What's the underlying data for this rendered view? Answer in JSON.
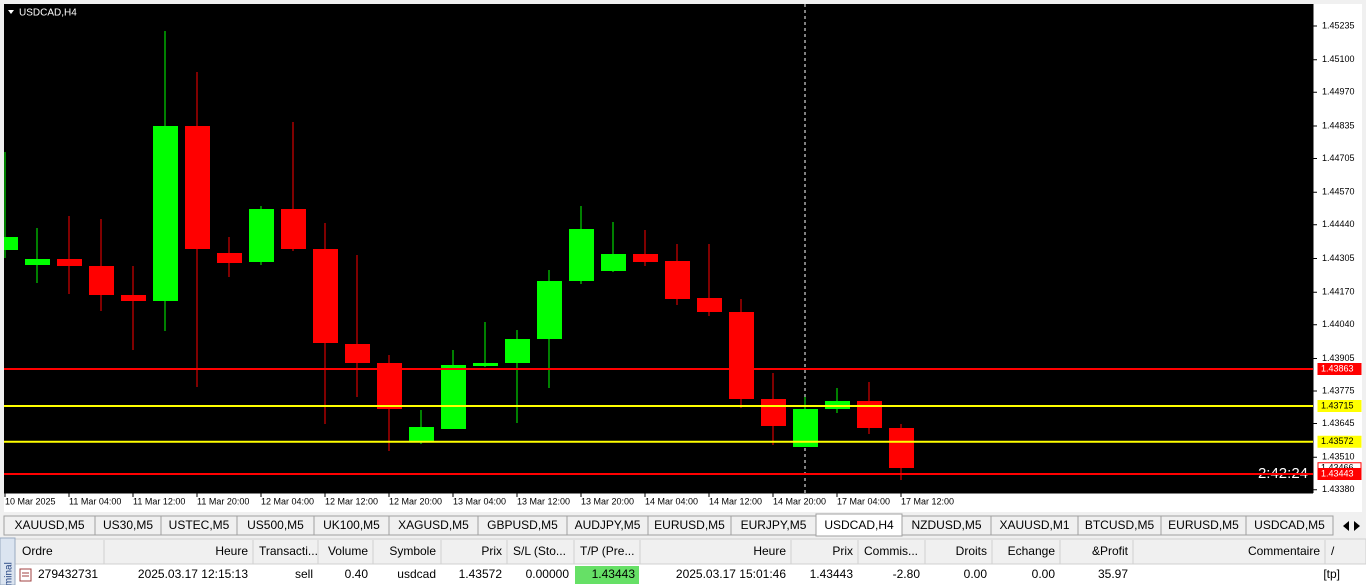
{
  "window": {
    "title": "USDCAD,H4"
  },
  "chart_data": {
    "type": "candlestick",
    "categories": [
      "10 Mar 2025",
      null,
      "11 Mar 04:00",
      null,
      "11 Mar 12:00",
      null,
      "11 Mar 20:00",
      null,
      "12 Mar 04:00",
      null,
      "12 Mar 12:00",
      null,
      "12 Mar 20:00",
      null,
      "13 Mar 04:00",
      null,
      "13 Mar 12:00",
      null,
      "13 Mar 20:00",
      null,
      "14 Mar 04:00",
      null,
      "14 Mar 12:00",
      null,
      "14 Mar 20:00",
      null,
      "17 Mar 04:00",
      null,
      "17 Mar 12:00"
    ],
    "open": [
      1.44339,
      1.44279,
      1.44303,
      1.44275,
      1.44159,
      1.44135,
      1.44835,
      1.44327,
      1.44291,
      1.44503,
      1.44343,
      1.43963,
      1.43887,
      1.43571,
      1.43623,
      1.43875,
      1.43887,
      1.43983,
      1.44215,
      1.44255,
      1.44323,
      1.44295,
      1.44147,
      1.44091,
      1.43743,
      1.43551,
      1.43703,
      1.43735,
      1.43627
    ],
    "high": [
      1.44731,
      1.44427,
      1.44475,
      1.44463,
      1.44275,
      1.45215,
      1.45051,
      1.44391,
      1.44515,
      1.44851,
      1.44447,
      1.44319,
      1.43919,
      1.43699,
      1.43939,
      1.44051,
      1.44019,
      1.44259,
      1.44515,
      1.44451,
      1.44419,
      1.44363,
      1.44363,
      1.44143,
      1.43847,
      1.43751,
      1.43787,
      1.43811,
      1.43643
    ],
    "low": [
      1.44307,
      1.44207,
      1.44163,
      1.44095,
      1.43939,
      1.44015,
      1.43791,
      1.44231,
      1.44279,
      1.44335,
      1.43643,
      1.43751,
      1.43535,
      1.43563,
      1.43623,
      1.43871,
      1.43647,
      1.43787,
      1.44203,
      1.44251,
      1.44275,
      1.44119,
      1.44075,
      1.43707,
      1.43559,
      1.43551,
      1.43687,
      1.43603,
      1.43419
    ],
    "close": [
      1.44391,
      1.44303,
      1.44275,
      1.44159,
      1.44135,
      1.44835,
      1.44343,
      1.44287,
      1.44503,
      1.44343,
      1.43967,
      1.43887,
      1.43703,
      1.43631,
      1.43879,
      1.43887,
      1.43983,
      1.44215,
      1.44423,
      1.44323,
      1.44291,
      1.44143,
      1.44091,
      1.43743,
      1.43635,
      1.43703,
      1.43735,
      1.43627,
      1.43467
    ],
    "up_color": "#00ff00",
    "down_color": "#ff0000",
    "ylim": [
      1.43367,
      1.45323
    ],
    "yticks": [
      1.45235,
      {
        "value": 1.451,
        "label": "1.45100"
      },
      {
        "value": 1.4497,
        "label": "1.44970"
      },
      1.44835,
      1.44705,
      {
        "value": 1.4457,
        "label": "1.44570"
      },
      {
        "value": 1.4444,
        "label": "1.44440"
      },
      1.44305,
      {
        "value": 1.4417,
        "label": "1.44170"
      },
      {
        "value": 1.4404,
        "label": "1.44040"
      },
      1.43905,
      1.43775,
      1.43645,
      {
        "value": 1.4351,
        "label": "1.43510"
      },
      {
        "value": 1.4338,
        "label": "1.43380"
      }
    ],
    "levels": [
      {
        "value": 1.43863,
        "color": "#ff0000",
        "line": true
      },
      {
        "value": 1.43715,
        "color": "#ffff00",
        "line": true
      },
      {
        "value": 1.43572,
        "color": "#ffff00",
        "line": true
      },
      {
        "value": 1.43466,
        "color": "#ffffff",
        "line": false
      },
      {
        "value": 1.43443,
        "color": "#ff0000",
        "line": true
      }
    ],
    "timer": "2:42:24"
  },
  "tabs": [
    "XAUUSD,M5",
    "US30,M5",
    "USTEC,M5",
    "US500,M5",
    "UK100,M5",
    "XAGUSD,M5",
    "GBPUSD,M5",
    "AUDJPY,M5",
    "EURUSD,M5",
    "EURJPY,M5",
    "USDCAD,H4",
    "NZDUSD,M5",
    "XAUUSD,M1",
    "BTCUSD,M5",
    "EURUSD,M5",
    "USDCAD,M5"
  ],
  "active_tab": 10,
  "terminal": {
    "label": "Terminal",
    "columns": [
      "Ordre",
      "Heure",
      "Transacti...",
      "Volume",
      "Symbole",
      "Prix",
      "S/L (Sto...",
      "T/P (Pre...",
      "Heure",
      "Prix",
      "Commis...",
      "Droits",
      "Echange",
      "&Profit",
      "Commentaire",
      "/"
    ],
    "rows": [
      [
        "279432731",
        "2025.03.17 12:15:13",
        "sell",
        "0.40",
        "usdcad",
        "1.43572",
        "0.00000",
        "1.43443",
        "2025.03.17 15:01:46",
        "1.43443",
        "-2.80",
        "0.00",
        "0.00",
        "35.97",
        "[tp]"
      ]
    ]
  }
}
